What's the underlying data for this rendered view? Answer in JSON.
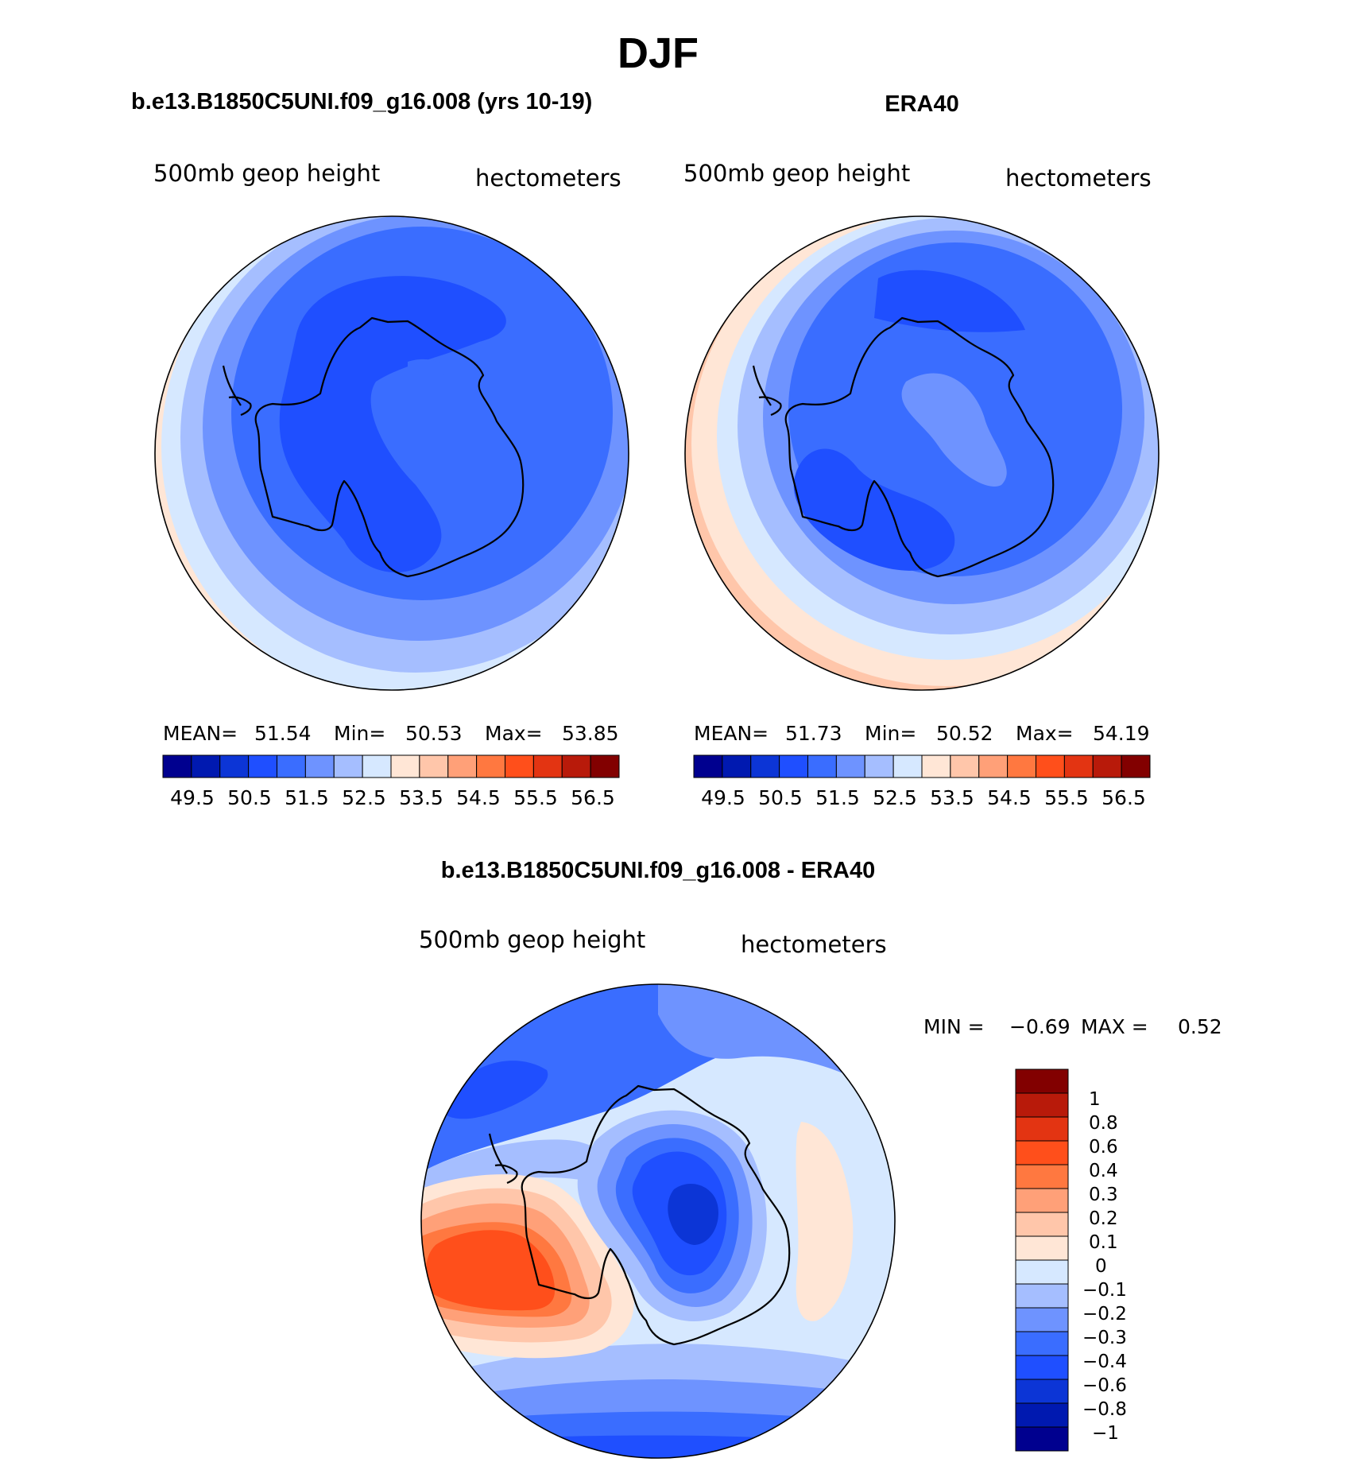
{
  "page": {
    "title": "DJF"
  },
  "colors": {
    "abs_scale": [
      "#00008f",
      "#0019b0",
      "#0c35d6",
      "#1f4fff",
      "#3a6dff",
      "#6e93ff",
      "#a5beff",
      "#d6e8ff",
      "#ffe6d6",
      "#ffc6aa",
      "#ffa078",
      "#ff7840",
      "#ff4f1b",
      "#e33412",
      "#b81a0a",
      "#820000"
    ],
    "diff_scale": [
      "#00008f",
      "#0019b0",
      "#0c35d6",
      "#1f4fff",
      "#3a6dff",
      "#6e93ff",
      "#a5beff",
      "#d6e8ff",
      "#ffe6d6",
      "#ffc6aa",
      "#ffa078",
      "#ff7840",
      "#ff4f1b",
      "#e33412",
      "#b81a0a",
      "#820000"
    ]
  },
  "panels": [
    {
      "id": "model",
      "title": "b.e13.B1850C5UNI.f09_g16.008 (yrs 10-19)",
      "left_label": "500mb  geop  height",
      "right_label": "hectometers",
      "stats": {
        "mean_label": "MEAN=",
        "mean": "51.54",
        "min_label": "Min=",
        "min": "50.53",
        "max_label": "Max=",
        "max": "53.85"
      },
      "colorbar_ticks": [
        "49.5",
        "50.5",
        "51.5",
        "52.5",
        "53.5",
        "54.5",
        "55.5",
        "56.5"
      ]
    },
    {
      "id": "obs",
      "title": "ERA40",
      "left_label": "500mb  geop  height",
      "right_label": "hectometers",
      "stats": {
        "mean_label": "MEAN=",
        "mean": "51.73",
        "min_label": "Min=",
        "min": "50.52",
        "max_label": "Max=",
        "max": "54.19"
      },
      "colorbar_ticks": [
        "49.5",
        "50.5",
        "51.5",
        "52.5",
        "53.5",
        "54.5",
        "55.5",
        "56.5"
      ]
    }
  ],
  "diff_panel": {
    "title": "b.e13.B1850C5UNI.f09_g16.008 - ERA40",
    "left_label": "500mb  geop  height",
    "right_label": "hectometers",
    "minmax": {
      "min_label": "MIN =",
      "min": "−0.69",
      "max_label": "MAX =",
      "max": "0.52"
    },
    "colorbar_labels": [
      "1",
      "0.8",
      "0.6",
      "0.4",
      "0.3",
      "0.2",
      "0.1",
      "0",
      "−0.1",
      "−0.2",
      "−0.3",
      "−0.4",
      "−0.6",
      "−0.8",
      "−1"
    ]
  }
}
